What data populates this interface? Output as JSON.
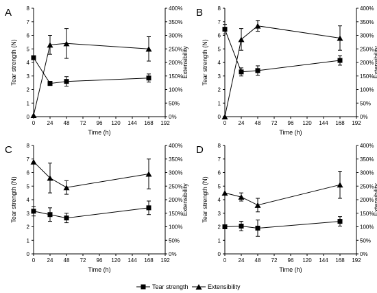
{
  "legend": {
    "tear_label": "Tear strength",
    "ext_label": "Extensibility"
  },
  "chart_data": [
    {
      "panel": "A",
      "type": "line",
      "x": [
        0,
        24,
        48,
        168
      ],
      "xlabel": "Time (h)",
      "ylabel_left": "Tear strength (N)",
      "ylabel_right": "Extensibility",
      "xlim": [
        0,
        192
      ],
      "xticks": [
        "0",
        "24",
        "48",
        "72",
        "96",
        "120",
        "144",
        "168",
        "192"
      ],
      "ylim_left": [
        0,
        8
      ],
      "yticks_left": [
        "0",
        "1",
        "2",
        "3",
        "4",
        "5",
        "6",
        "7",
        "8"
      ],
      "ylim_right": [
        0,
        400
      ],
      "yticks_right": [
        "0%",
        "50%",
        "100%",
        "150%",
        "200%",
        "250%",
        "300%",
        "350%",
        "400%"
      ],
      "series": [
        {
          "name": "Tear strength",
          "axis": "left",
          "marker": "square",
          "values": [
            4.35,
            2.45,
            2.6,
            2.85
          ],
          "errors": [
            0.0,
            0.15,
            0.35,
            0.3
          ]
        },
        {
          "name": "Extensibility",
          "axis": "right",
          "marker": "triangle",
          "values": [
            5,
            265,
            270,
            250
          ],
          "errors": [
            0,
            35,
            55,
            45
          ]
        }
      ]
    },
    {
      "panel": "B",
      "type": "line",
      "x": [
        0,
        24,
        48,
        168
      ],
      "xlabel": "Time (h)",
      "ylabel_left": "Tear strength (N)",
      "ylabel_right": "Extensibility",
      "xlim": [
        0,
        192
      ],
      "xticks": [
        "0",
        "24",
        "48",
        "72",
        "96",
        "120",
        "144",
        "168",
        "192"
      ],
      "ylim_left": [
        0,
        8
      ],
      "yticks_left": [
        "0",
        "1",
        "2",
        "3",
        "4",
        "5",
        "6",
        "7",
        "8"
      ],
      "ylim_right": [
        0,
        400
      ],
      "yticks_right": [
        "0%",
        "50%",
        "100%",
        "150%",
        "200%",
        "250%",
        "300%",
        "350%",
        "400%"
      ],
      "series": [
        {
          "name": "Tear strength",
          "axis": "left",
          "marker": "square",
          "values": [
            6.45,
            3.3,
            3.4,
            4.15
          ],
          "errors": [
            0.35,
            0.3,
            0.35,
            0.35
          ]
        },
        {
          "name": "Extensibility",
          "axis": "right",
          "marker": "triangle",
          "values": [
            0,
            285,
            335,
            290
          ],
          "errors": [
            0,
            40,
            20,
            45
          ]
        }
      ]
    },
    {
      "panel": "C",
      "type": "line",
      "x": [
        0,
        24,
        48,
        168
      ],
      "xlabel": "Time (h)",
      "ylabel_left": "Tear strength (N)",
      "ylabel_right": "Extensibility",
      "xlim": [
        0,
        192
      ],
      "xticks": [
        "0",
        "24",
        "48",
        "72",
        "96",
        "120",
        "144",
        "168",
        "192"
      ],
      "ylim_left": [
        0,
        8
      ],
      "yticks_left": [
        "0",
        "1",
        "2",
        "3",
        "4",
        "5",
        "6",
        "7",
        "8"
      ],
      "ylim_right": [
        0,
        400
      ],
      "yticks_right": [
        "0%",
        "50%",
        "100%",
        "150%",
        "200%",
        "250%",
        "300%",
        "350%",
        "400%"
      ],
      "series": [
        {
          "name": "Tear strength",
          "axis": "left",
          "marker": "square",
          "values": [
            3.15,
            2.9,
            2.65,
            3.4
          ],
          "errors": [
            0.35,
            0.5,
            0.35,
            0.5
          ]
        },
        {
          "name": "Extensibility",
          "axis": "right",
          "marker": "triangle",
          "values": [
            340,
            280,
            245,
            295
          ],
          "errors": [
            0,
            55,
            25,
            55
          ]
        }
      ]
    },
    {
      "panel": "D",
      "type": "line",
      "x": [
        0,
        24,
        48,
        168
      ],
      "xlabel": "Time (h)",
      "ylabel_left": "Tear strength (N)",
      "ylabel_right": "Extensibility",
      "xlim": [
        0,
        192
      ],
      "xticks": [
        "0",
        "24",
        "48",
        "72",
        "96",
        "120",
        "144",
        "168",
        "192"
      ],
      "ylim_left": [
        0,
        8
      ],
      "yticks_left": [
        "0",
        "1",
        "2",
        "3",
        "4",
        "5",
        "6",
        "7",
        "8"
      ],
      "ylim_right": [
        0,
        400
      ],
      "yticks_right": [
        "0%",
        "50%",
        "100%",
        "150%",
        "200%",
        "250%",
        "300%",
        "350%",
        "400%"
      ],
      "series": [
        {
          "name": "Tear strength",
          "axis": "left",
          "marker": "square",
          "values": [
            2.0,
            2.05,
            1.9,
            2.4
          ],
          "errors": [
            0.0,
            0.35,
            0.6,
            0.35
          ]
        },
        {
          "name": "Extensibility",
          "axis": "right",
          "marker": "triangle",
          "values": [
            225,
            210,
            180,
            255
          ],
          "errors": [
            0,
            15,
            25,
            50
          ]
        }
      ]
    }
  ]
}
